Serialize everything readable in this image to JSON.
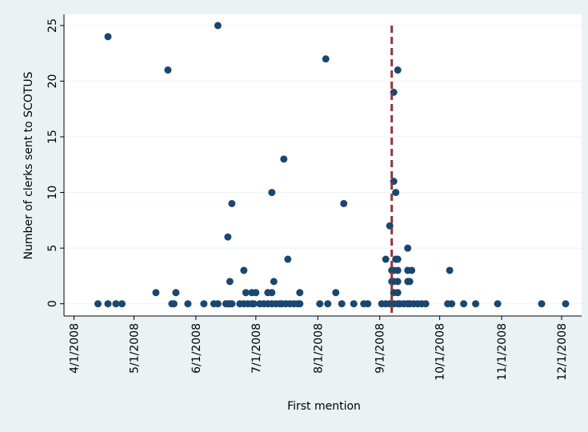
{
  "chart_data": {
    "type": "scatter",
    "xlabel": "First mention",
    "ylabel": "Number of clerks sent to SCOTUS",
    "xlim": [
      "2008-03-27",
      "2008-12-11"
    ],
    "xticks": [
      {
        "value": "2008-04-01",
        "label": "4/1/2008"
      },
      {
        "value": "2008-05-01",
        "label": "5/1/2008"
      },
      {
        "value": "2008-06-01",
        "label": "6/1/2008"
      },
      {
        "value": "2008-07-01",
        "label": "7/1/2008"
      },
      {
        "value": "2008-08-01",
        "label": "8/1/2008"
      },
      {
        "value": "2008-09-01",
        "label": "9/1/2008"
      },
      {
        "value": "2008-10-01",
        "label": "10/1/2008"
      },
      {
        "value": "2008-11-01",
        "label": "11/1/2008"
      },
      {
        "value": "2008-12-01",
        "label": "12/1/2008"
      }
    ],
    "ylim": [
      -1.1,
      26
    ],
    "yticks": [
      0,
      5,
      10,
      15,
      20,
      25
    ],
    "grid": true,
    "vline": {
      "x": "2008-09-07",
      "color": "#90353b"
    },
    "series": [
      {
        "color": "#1a476f",
        "x": [
          "2008-04-13",
          "2008-04-18",
          "2008-04-22",
          "2008-04-25",
          "2008-05-20",
          "2008-05-21",
          "2008-05-28",
          "2008-06-05",
          "2008-06-10",
          "2008-06-12",
          "2008-06-16",
          "2008-06-17",
          "2008-06-18",
          "2008-06-19",
          "2008-06-23",
          "2008-06-25",
          "2008-06-27",
          "2008-06-29",
          "2008-06-30",
          "2008-07-03",
          "2008-07-05",
          "2008-07-07",
          "2008-07-09",
          "2008-07-11",
          "2008-07-13",
          "2008-07-14",
          "2008-07-16",
          "2008-07-18",
          "2008-07-20",
          "2008-07-22",
          "2008-07-23",
          "2008-08-02",
          "2008-08-06",
          "2008-08-13",
          "2008-08-19",
          "2008-08-24",
          "2008-08-26",
          "2008-09-02",
          "2008-09-04",
          "2008-09-06",
          "2008-09-07",
          "2008-09-08",
          "2008-09-10",
          "2008-09-11",
          "2008-09-13",
          "2008-09-15",
          "2008-09-16",
          "2008-09-18",
          "2008-09-20",
          "2008-09-22",
          "2008-09-24",
          "2008-10-05",
          "2008-10-07",
          "2008-10-13",
          "2008-10-19",
          "2008-10-30",
          "2008-11-21",
          "2008-12-03",
          "2008-04-18",
          "2008-05-18",
          "2008-05-12",
          "2008-05-22",
          "2008-06-12",
          "2008-06-17",
          "2008-06-18",
          "2008-06-19",
          "2008-06-25",
          "2008-06-26",
          "2008-06-29",
          "2008-07-01",
          "2008-07-07",
          "2008-07-09",
          "2008-07-09",
          "2008-07-10",
          "2008-07-15",
          "2008-07-17",
          "2008-07-23",
          "2008-08-05",
          "2008-08-10",
          "2008-08-14",
          "2008-09-04",
          "2008-09-06",
          "2008-09-07",
          "2008-09-08",
          "2008-09-10",
          "2008-09-08",
          "2008-09-08",
          "2008-09-10",
          "2008-09-09",
          "2008-09-08",
          "2008-09-10",
          "2008-09-07",
          "2008-09-08",
          "2008-09-10",
          "2008-09-09",
          "2008-09-10",
          "2008-09-15",
          "2008-09-17",
          "2008-09-15",
          "2008-09-15",
          "2008-09-16",
          "2008-10-06"
        ],
        "values": [
          0,
          0,
          0,
          0,
          0,
          0,
          0,
          0,
          0,
          0,
          0,
          0,
          0,
          0,
          0,
          0,
          0,
          0,
          0,
          0,
          0,
          0,
          0,
          0,
          0,
          0,
          0,
          0,
          0,
          0,
          0,
          0,
          0,
          0,
          0,
          0,
          0,
          0,
          0,
          0,
          0,
          0,
          0,
          0,
          0,
          0,
          0,
          0,
          0,
          0,
          0,
          0,
          0,
          0,
          0,
          0,
          0,
          0,
          24,
          21,
          1,
          1,
          25,
          6,
          2,
          9,
          3,
          1,
          1,
          1,
          1,
          1,
          10,
          2,
          13,
          4,
          1,
          22,
          1,
          9,
          4,
          7,
          3,
          3,
          3,
          19,
          11,
          21,
          10,
          1,
          1,
          2,
          2,
          2,
          4,
          4,
          3,
          3,
          5,
          2,
          2,
          3
        ]
      }
    ]
  }
}
